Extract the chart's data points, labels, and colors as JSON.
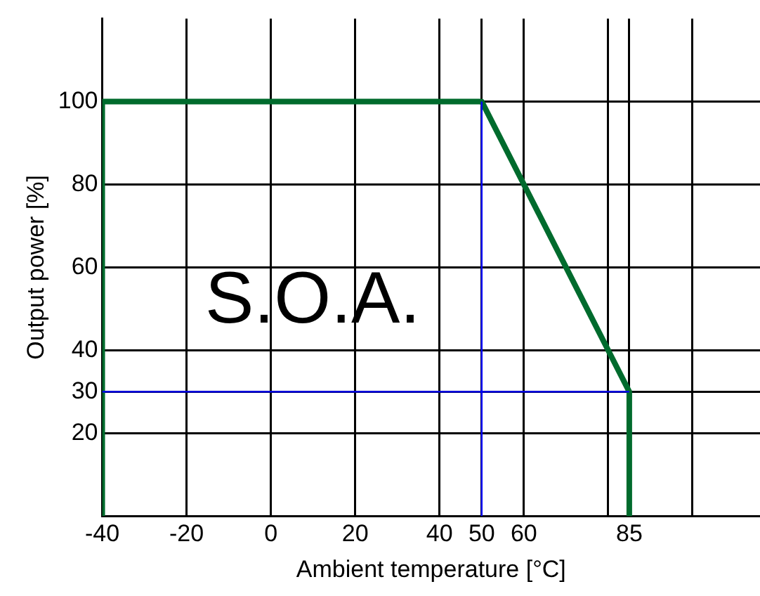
{
  "chart_data": {
    "type": "line",
    "xlabel": "Ambient temperature [°C]",
    "ylabel": "Output power [%]",
    "xlim": [
      -40,
      116
    ],
    "ylim": [
      0,
      120
    ],
    "xticks": [
      -40,
      -20,
      0,
      20,
      40,
      50,
      60,
      {
        "value": 80,
        "label": null
      },
      85,
      {
        "value": 100,
        "label": null
      }
    ],
    "yticks": [
      20,
      30,
      40,
      60,
      80,
      100
    ],
    "grid": true,
    "legend": false,
    "marker": "none",
    "line_style": "solid",
    "series": [
      {
        "color": "#006b2d",
        "x": [
          -40,
          -40,
          50,
          85,
          85
        ],
        "values": [
          0,
          100,
          100,
          30,
          0
        ]
      },
      {
        "color": "#0000ff",
        "x": [
          50,
          50
        ],
        "values": [
          0,
          100
        ]
      },
      {
        "color": "#0000ff",
        "x": [
          -40,
          85
        ],
        "values": [
          30,
          30
        ]
      }
    ],
    "annotations": [
      "S.O.A."
    ]
  }
}
